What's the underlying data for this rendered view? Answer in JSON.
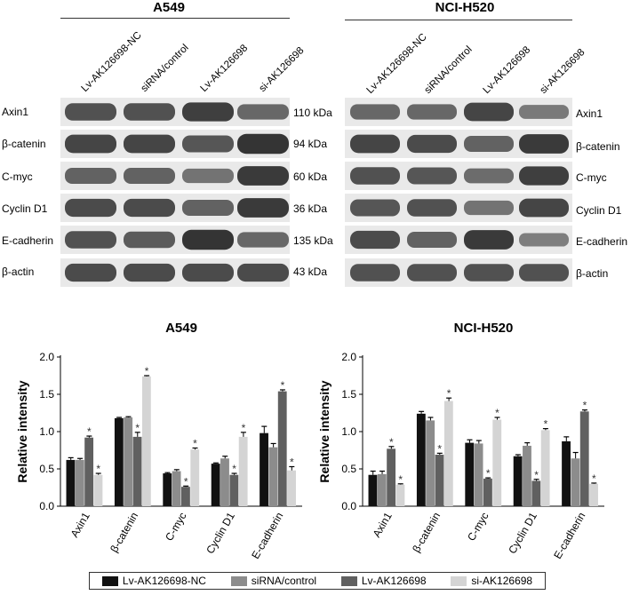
{
  "colors": {
    "lv_nc": "#111111",
    "sirna": "#8c8c8c",
    "lv_ak": "#606060",
    "si_ak": "#d4d4d4",
    "blot_bg": "#e9e9e9",
    "blot_band": "#2a2a2a"
  },
  "blots": [
    {
      "title": "A549",
      "lanes": [
        "Lv-AK126698-NC",
        "siRNA/control",
        "Lv-AK126698",
        "si-AK126698"
      ],
      "proteins": [
        "Axin1",
        "β-catenin",
        "C-myc",
        "Cyclin D1",
        "E-cadherin",
        "β-actin"
      ],
      "kda": [
        "110 kDa",
        "94 kDa",
        "60 kDa",
        "36 kDa",
        "135 kDa",
        "43 kDa"
      ]
    },
    {
      "title": "NCI-H520",
      "lanes": [
        "Lv-AK126698-NC",
        "siRNA/control",
        "Lv-AK126698",
        "si-AK126698"
      ],
      "proteins": [
        "Axin1",
        "β-catenin",
        "C-myc",
        "Cyclin D1",
        "E-cadherin",
        "β-actin"
      ]
    }
  ],
  "chart_data": [
    {
      "type": "bar",
      "title": "A549",
      "ylabel": "Relative intensity",
      "xlabel": "",
      "ylim": [
        0,
        2.0
      ],
      "yticks": [
        "0.0",
        "0.5",
        "1.0",
        "1.5",
        "2.0"
      ],
      "categories": [
        "Axin1",
        "β-catenin",
        "C-myc",
        "Cyclin D1",
        "E-cadherin"
      ],
      "series": [
        {
          "name": "Lv-AK126698-NC",
          "values": [
            0.62,
            1.18,
            0.44,
            0.57,
            0.98
          ],
          "errors": [
            0.03,
            0.01,
            0.01,
            0.01,
            0.09
          ]
        },
        {
          "name": "siRNA/control",
          "values": [
            0.62,
            1.19,
            0.47,
            0.64,
            0.79
          ],
          "errors": [
            0.02,
            0.01,
            0.02,
            0.03,
            0.05
          ]
        },
        {
          "name": "Lv-AK126698",
          "values": [
            0.92,
            0.93,
            0.26,
            0.42,
            1.54
          ],
          "errors": [
            0.02,
            0.06,
            0.01,
            0.02,
            0.02
          ]
        },
        {
          "name": "si-AK126698",
          "values": [
            0.42,
            1.74,
            0.76,
            0.93,
            0.48
          ],
          "errors": [
            0.02,
            0.01,
            0.02,
            0.06,
            0.05
          ]
        }
      ],
      "significance": [
        [
          false,
          false,
          true,
          true
        ],
        [
          false,
          false,
          true,
          true
        ],
        [
          false,
          false,
          true,
          true
        ],
        [
          false,
          false,
          true,
          true
        ],
        [
          false,
          false,
          true,
          true
        ]
      ]
    },
    {
      "type": "bar",
      "title": "NCI-H520",
      "ylabel": "Relative intensity",
      "xlabel": "",
      "ylim": [
        0,
        2.0
      ],
      "yticks": [
        "0.0",
        "0.5",
        "1.0",
        "1.5",
        "2.0"
      ],
      "categories": [
        "Axin1",
        "β-catenin",
        "C-myc",
        "Cyclin D1",
        "E-cadherin"
      ],
      "series": [
        {
          "name": "Lv-AK126698-NC",
          "values": [
            0.42,
            1.24,
            0.85,
            0.67,
            0.87
          ],
          "errors": [
            0.05,
            0.03,
            0.04,
            0.02,
            0.06
          ]
        },
        {
          "name": "siRNA/control",
          "values": [
            0.43,
            1.15,
            0.84,
            0.81,
            0.64
          ],
          "errors": [
            0.04,
            0.04,
            0.04,
            0.04,
            0.08
          ]
        },
        {
          "name": "Lv-AK126698",
          "values": [
            0.77,
            0.69,
            0.37,
            0.34,
            1.27
          ],
          "errors": [
            0.03,
            0.02,
            0.01,
            0.02,
            0.02
          ]
        },
        {
          "name": "si-AK126698",
          "values": [
            0.29,
            1.41,
            1.16,
            1.02,
            0.3
          ],
          "errors": [
            0.01,
            0.04,
            0.03,
            0.02,
            0.01
          ]
        }
      ],
      "significance": [
        [
          false,
          false,
          true,
          true
        ],
        [
          false,
          false,
          true,
          true
        ],
        [
          false,
          false,
          true,
          true
        ],
        [
          false,
          false,
          true,
          true
        ],
        [
          false,
          false,
          true,
          true
        ]
      ]
    }
  ],
  "legend": {
    "entries": [
      "Lv-AK126698-NC",
      "siRNA/control",
      "Lv-AK126698",
      "si-AK126698"
    ]
  }
}
